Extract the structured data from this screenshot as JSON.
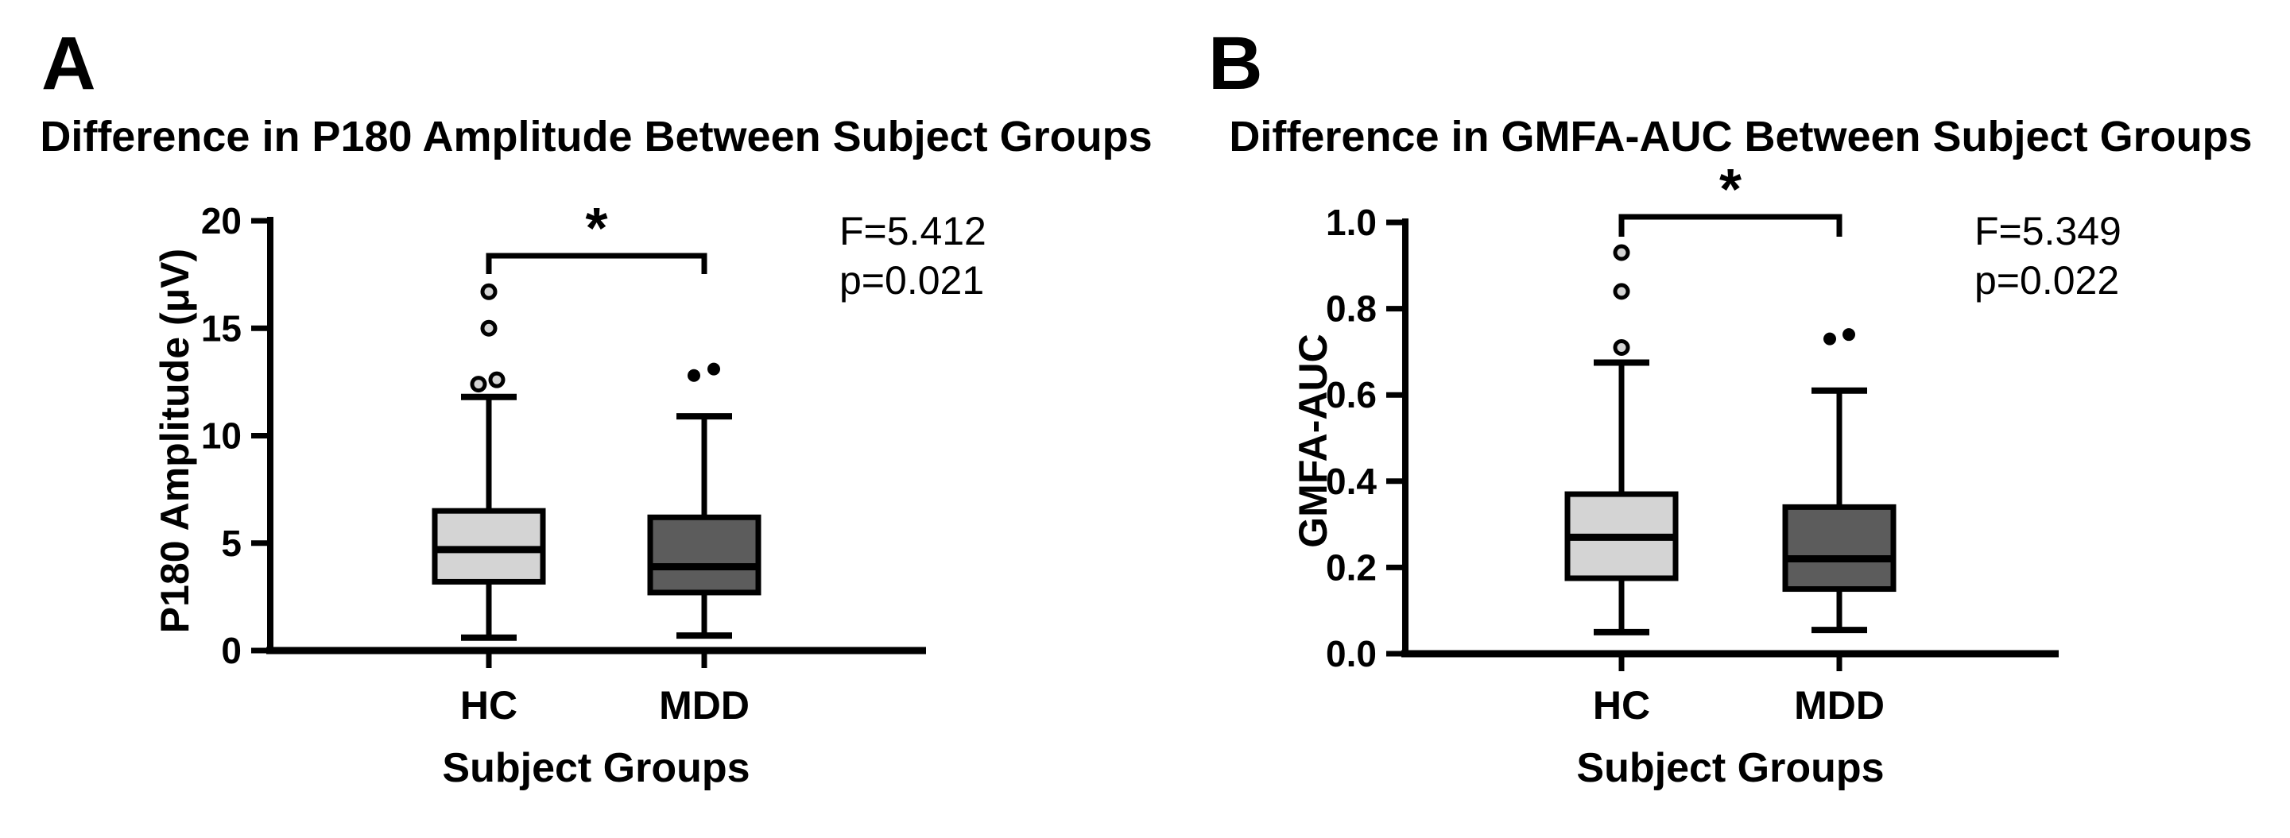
{
  "figure": {
    "background": "#ffffff",
    "line_color": "#000000"
  },
  "chart_data": [
    {
      "type": "box",
      "panel_letter": "A",
      "title": "Difference in P180 Amplitude Between Subject Groups",
      "ylabel": "P180 Amplitude (μV)",
      "xlabel": "Subject Groups",
      "ylim": [
        0,
        20
      ],
      "yticks": [
        0,
        5,
        10,
        15,
        20
      ],
      "ytick_labels": [
        "0",
        "5",
        "10",
        "15",
        "20"
      ],
      "categories": [
        "HC",
        "MDD"
      ],
      "grid": false,
      "series": [
        {
          "name": "HC",
          "fill": "#d4d4d4",
          "outlier_style": "open",
          "min": 0.6,
          "q1": 3.2,
          "median": 4.7,
          "q3": 6.5,
          "max": 11.8,
          "outliers": [
            {
              "value": 12.4,
              "dx": -13
            },
            {
              "value": 12.6,
              "dx": 10
            },
            {
              "value": 15.0,
              "dx": 0
            },
            {
              "value": 16.7,
              "dx": 0
            }
          ]
        },
        {
          "name": "MDD",
          "fill": "#5c5c5c",
          "outlier_style": "filled",
          "min": 0.7,
          "q1": 2.7,
          "median": 3.9,
          "q3": 6.2,
          "max": 10.9,
          "outliers": [
            {
              "value": 12.8,
              "dx": -13
            },
            {
              "value": 13.1,
              "dx": 12
            }
          ]
        }
      ],
      "significance": {
        "label": "*",
        "between": [
          "HC",
          "MDD"
        ]
      },
      "stats": {
        "f": "F=5.412",
        "p": "p=0.021"
      }
    },
    {
      "type": "box",
      "panel_letter": "B",
      "title": "Difference in GMFA-AUC Between Subject Groups",
      "ylabel": "GMFA-AUC",
      "xlabel": "Subject Groups",
      "ylim": [
        0,
        1.0
      ],
      "yticks": [
        0,
        0.2,
        0.4,
        0.6,
        0.8,
        1.0
      ],
      "ytick_labels": [
        "0.0",
        "0.2",
        "0.4",
        "0.6",
        "0.8",
        "1.0"
      ],
      "categories": [
        "HC",
        "MDD"
      ],
      "grid": false,
      "series": [
        {
          "name": "HC",
          "fill": "#d4d4d4",
          "outlier_style": "open",
          "min": 0.05,
          "q1": 0.175,
          "median": 0.27,
          "q3": 0.37,
          "max": 0.675,
          "outliers": [
            {
              "value": 0.71,
              "dx": 0
            },
            {
              "value": 0.84,
              "dx": 0
            },
            {
              "value": 0.93,
              "dx": 0
            }
          ]
        },
        {
          "name": "MDD",
          "fill": "#5c5c5c",
          "outlier_style": "filled",
          "min": 0.055,
          "q1": 0.15,
          "median": 0.22,
          "q3": 0.34,
          "max": 0.61,
          "outliers": [
            {
              "value": 0.73,
              "dx": -12
            },
            {
              "value": 0.74,
              "dx": 12
            }
          ]
        }
      ],
      "significance": {
        "label": "*",
        "between": [
          "HC",
          "MDD"
        ]
      },
      "stats": {
        "f": "F=5.349",
        "p": "p=0.022"
      }
    }
  ]
}
